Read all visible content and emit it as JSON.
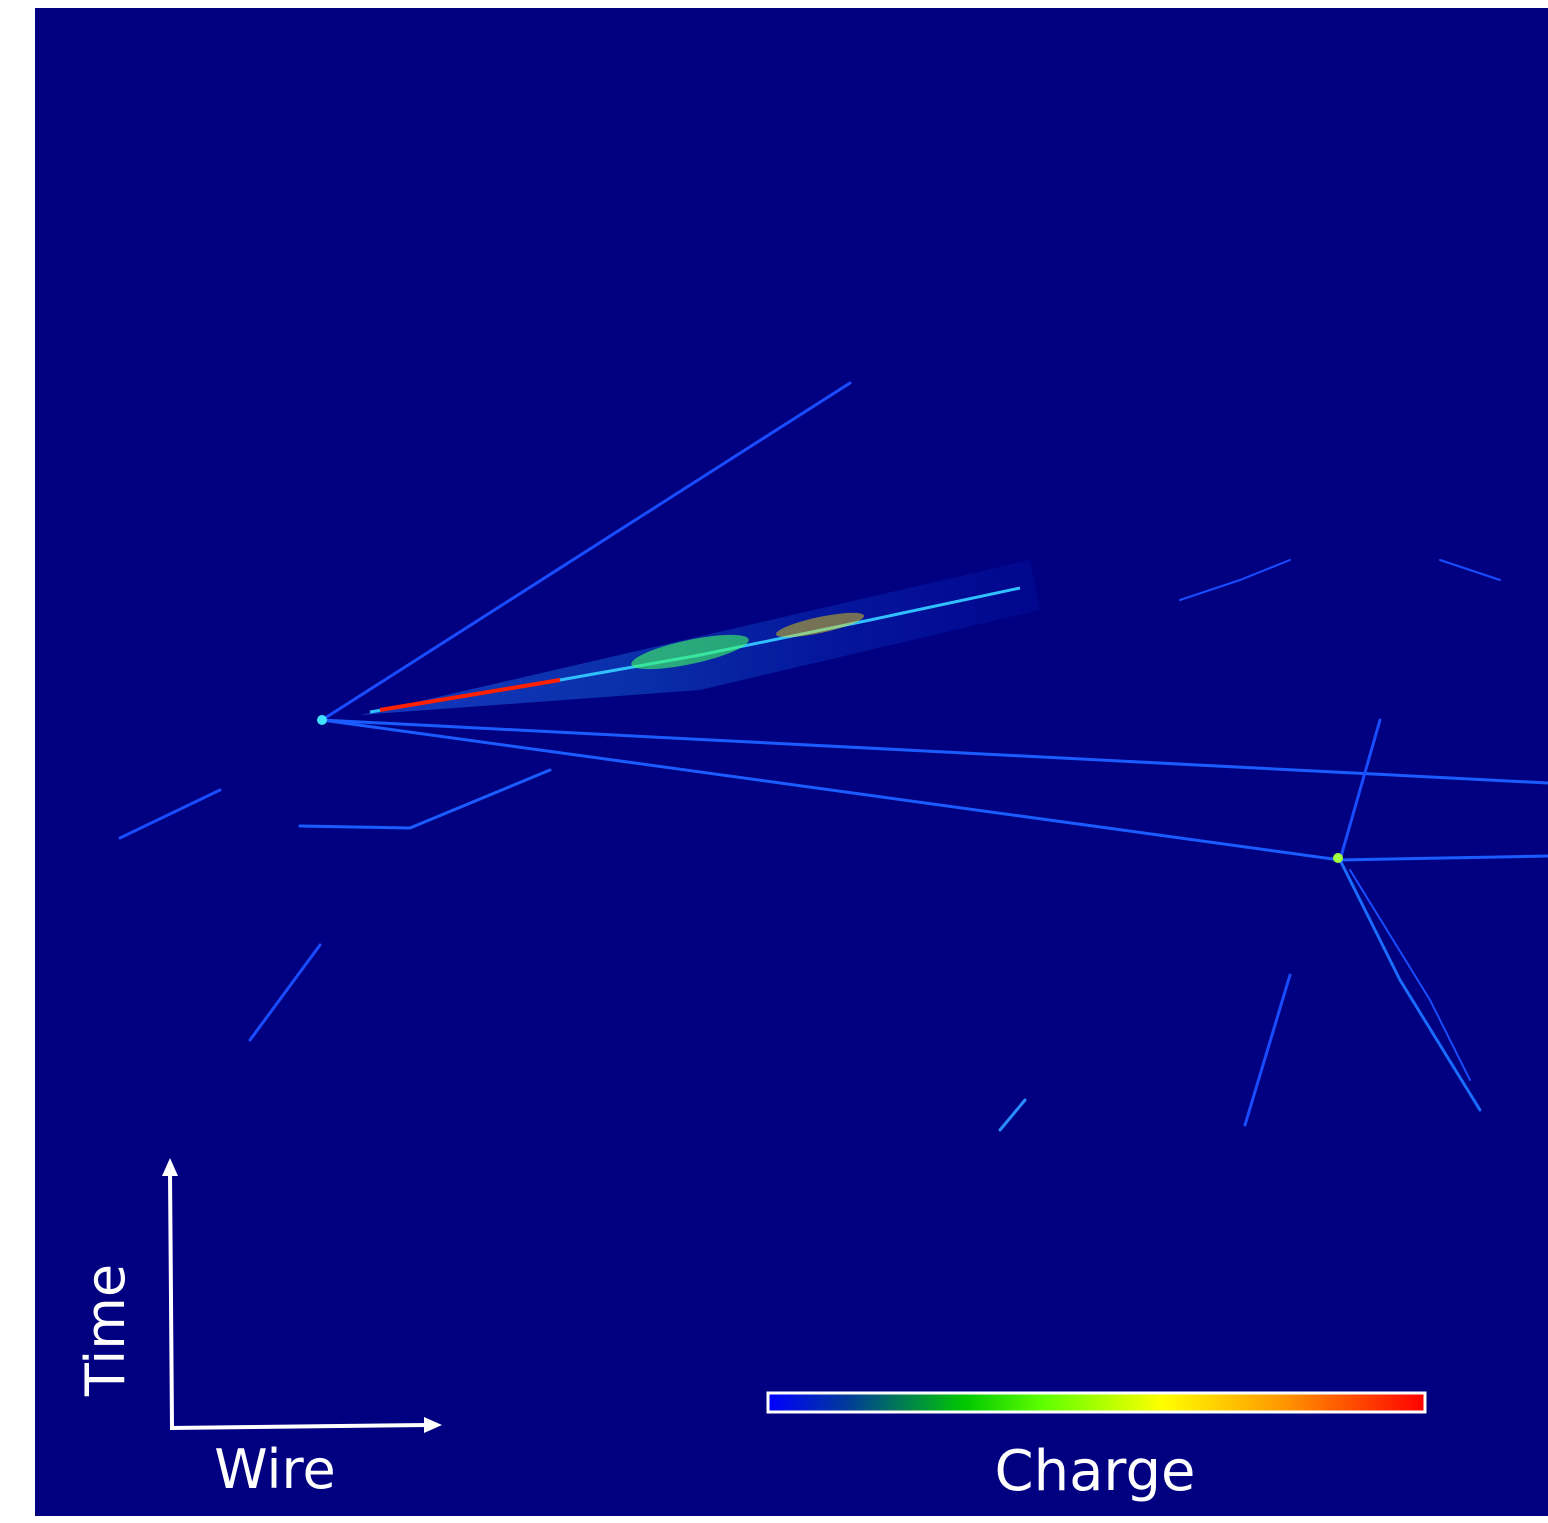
{
  "axes": {
    "vertical": "Time",
    "horizontal": "Wire"
  },
  "colorbar": {
    "label": "Charge"
  }
}
